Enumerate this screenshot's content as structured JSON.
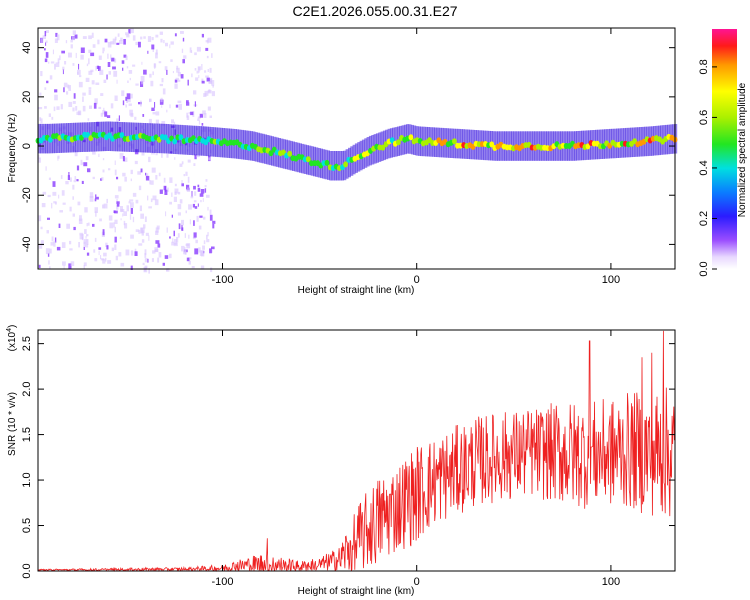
{
  "title": "C2E1.2026.055.00.31.E27",
  "chart_data": [
    {
      "type": "heatmap",
      "xlabel": "Height of straight line (km)",
      "ylabel": "Frequency (Hz)",
      "xlim": [
        -195,
        133
      ],
      "ylim": [
        -50,
        48
      ],
      "xticks": [
        -100,
        0,
        100
      ],
      "yticks": [
        -40,
        -20,
        0,
        20,
        40
      ],
      "ridge": {
        "x": [
          -190,
          -160,
          -130,
          -110,
          -95,
          -85,
          -75,
          -65,
          -55,
          -45,
          -38,
          -32,
          -25,
          -15,
          -5,
          0,
          20,
          40,
          60,
          80,
          100,
          120,
          133
        ],
        "y": [
          3,
          4,
          3,
          2,
          1,
          0,
          -2,
          -4,
          -6,
          -8,
          -8,
          -5,
          -2,
          1,
          3,
          2,
          1,
          0,
          0,
          0,
          1,
          2,
          3
        ]
      },
      "noise_region_x": [
        -195,
        -105
      ],
      "colorbar": {
        "label": "Normalized spectral amplitude",
        "range": [
          0.0,
          0.95
        ],
        "ticks": [
          "0.0",
          "0.2",
          "0.4",
          "0.6",
          "0.8"
        ]
      }
    },
    {
      "type": "line",
      "xlabel": "Height of straight line (km)",
      "ylabel": "SNR (10 * v/v)",
      "scale_label": "(x10",
      "scale_exp": "4",
      "xlim": [
        -195,
        133
      ],
      "ylim": [
        0,
        2.65
      ],
      "xticks": [
        -100,
        0,
        100
      ],
      "yticks": [
        "0.0",
        "0.5",
        "1.0",
        "1.5",
        "2.0",
        "2.5"
      ],
      "color": "#ee2020",
      "envelope": {
        "x": [
          -195,
          -120,
          -100,
          -90,
          -80,
          -70,
          -60,
          -50,
          -40,
          -35,
          -30,
          -25,
          -20,
          -10,
          0,
          10,
          20,
          30,
          40,
          50,
          60,
          70,
          80,
          90,
          100,
          110,
          120,
          133
        ],
        "base": [
          0.01,
          0.02,
          0.03,
          0.06,
          0.08,
          0.06,
          0.05,
          0.07,
          0.12,
          0.25,
          0.35,
          0.45,
          0.55,
          0.7,
          0.85,
          1.0,
          1.1,
          1.2,
          1.25,
          1.28,
          1.3,
          1.3,
          1.28,
          1.28,
          1.3,
          1.32,
          1.3,
          1.3
        ],
        "noise": [
          0.01,
          0.02,
          0.04,
          0.08,
          0.12,
          0.1,
          0.06,
          0.08,
          0.15,
          0.3,
          0.4,
          0.45,
          0.5,
          0.5,
          0.55,
          0.5,
          0.5,
          0.5,
          0.5,
          0.5,
          0.5,
          0.55,
          0.6,
          0.6,
          0.6,
          0.65,
          0.7,
          0.75
        ]
      },
      "peaks": [
        {
          "x": -77,
          "y": 0.36
        },
        {
          "x": 89,
          "y": 2.53
        },
        {
          "x": 116,
          "y": 2.35
        },
        {
          "x": 121,
          "y": 2.4
        },
        {
          "x": 127,
          "y": 2.64
        }
      ]
    }
  ]
}
